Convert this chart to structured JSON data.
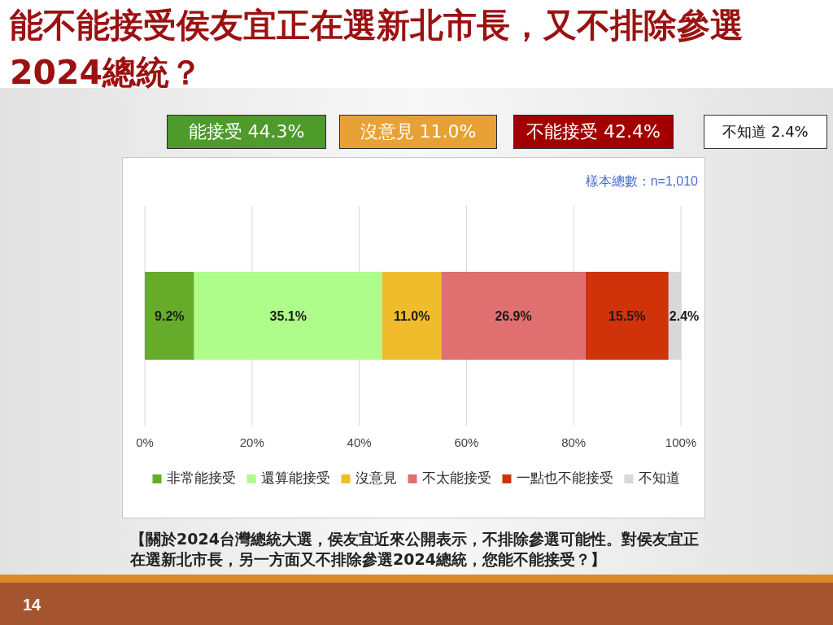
{
  "chart_data": {
    "type": "bar",
    "orientation": "horizontal",
    "stacked": true,
    "title": "能不能接受侯友宜正在選新北市長，又不排除參選2024總統？",
    "categories": [
      null
    ],
    "series": [
      {
        "name": "非常能接受",
        "color": "#66ac2a",
        "values": [
          9.2
        ],
        "value_labels": [
          "9.2%"
        ]
      },
      {
        "name": "還算能接受",
        "color": "#aefc8a",
        "values": [
          35.1
        ],
        "value_labels": [
          "35.1%"
        ]
      },
      {
        "name": "沒意見",
        "color": "#f0bc2c",
        "values": [
          11.0
        ],
        "value_labels": [
          "11.0%"
        ]
      },
      {
        "name": "不太能接受",
        "color": "#e07070",
        "values": [
          26.9
        ],
        "value_labels": [
          "26.9%"
        ]
      },
      {
        "name": "一點也不能接受",
        "color": "#d0330a",
        "values": [
          15.5
        ],
        "value_labels": [
          "15.5%"
        ]
      },
      {
        "name": "不知道",
        "color": "#d8d8d8",
        "values": [
          2.4
        ],
        "value_labels": [
          "2.4%"
        ]
      }
    ],
    "xlim": [
      0,
      100
    ],
    "xticks": [
      {
        "value": 0,
        "label": "0%"
      },
      {
        "value": 20,
        "label": "20%"
      },
      {
        "value": 40,
        "label": "40%"
      },
      {
        "value": 60,
        "label": "60%"
      },
      {
        "value": 80,
        "label": "80%"
      },
      {
        "value": 100,
        "label": "100%"
      }
    ],
    "grid": "x",
    "legend": "bottom",
    "annotations": [
      "能接受 44.3%",
      "沒意見 11.0%",
      "不能接受 42.4%",
      "不知道 2.4%",
      "樣本總數：n=1,010",
      "【關於2024台灣總統大選，侯友宜近來公開表示，不排除參選可能性。對侯友宜正在選新北市長，另一方面又不排除參選2024總統，您能不能接受？】",
      "14"
    ]
  }
}
